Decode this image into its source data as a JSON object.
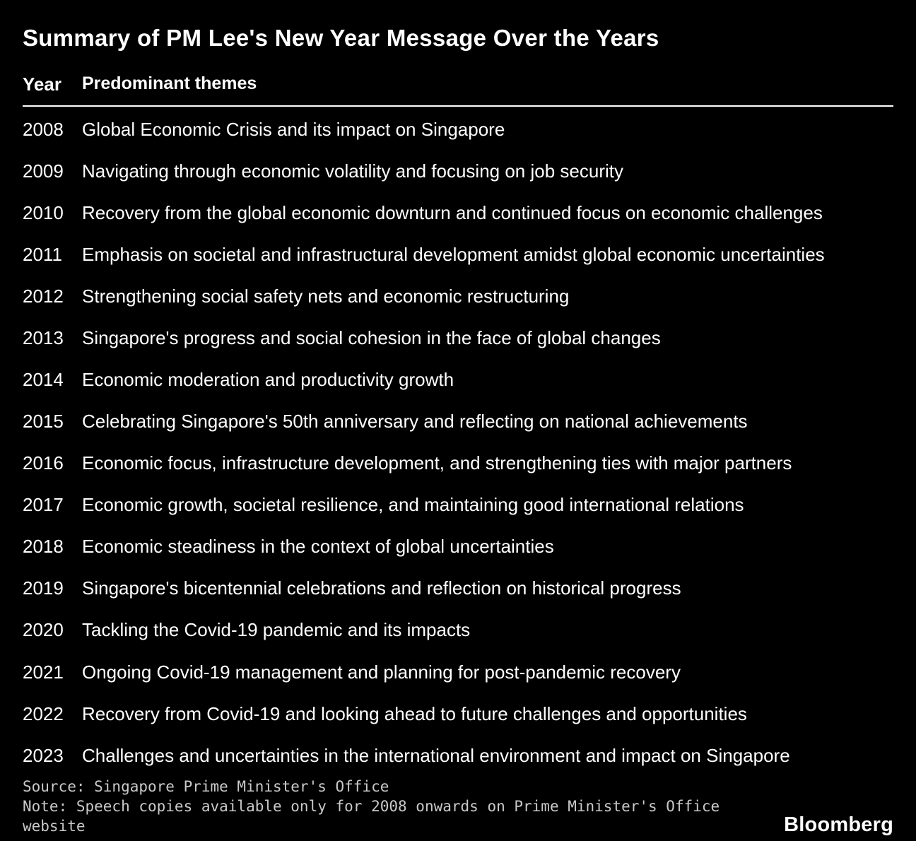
{
  "chart_data": {
    "type": "table",
    "title": "Summary of PM Lee's New Year Message Over the Years",
    "columns": [
      "Year",
      "Predominant themes"
    ],
    "rows": [
      [
        "2008",
        "Global Economic Crisis and its impact on Singapore"
      ],
      [
        "2009",
        "Navigating through economic volatility and focusing on job security"
      ],
      [
        "2010",
        "Recovery from the global economic downturn and continued focus on economic challenges"
      ],
      [
        "2011",
        "Emphasis on societal and infrastructural development amidst global economic uncertainties"
      ],
      [
        "2012",
        "Strengthening social safety nets and economic restructuring"
      ],
      [
        "2013",
        "Singapore's progress and social cohesion in the face of global changes"
      ],
      [
        "2014",
        "Economic moderation and productivity growth"
      ],
      [
        "2015",
        "Celebrating Singapore's 50th anniversary and reflecting on national achievements"
      ],
      [
        "2016",
        "Economic focus, infrastructure development, and strengthening ties with major partners"
      ],
      [
        "2017",
        "Economic growth, societal resilience, and maintaining good international relations"
      ],
      [
        "2018",
        "Economic steadiness in the context of global uncertainties"
      ],
      [
        "2019",
        "Singapore's bicentennial celebrations and reflection on historical progress"
      ],
      [
        "2020",
        "Tackling the Covid-19 pandemic and its impacts"
      ],
      [
        "2021",
        "Ongoing Covid-19 management and planning for post-pandemic recovery"
      ],
      [
        "2022",
        "Recovery from Covid-19 and looking ahead to future challenges and opportunities"
      ],
      [
        "2023",
        "Challenges and uncertainties in the international environment and impact on Singapore"
      ]
    ],
    "source": "Source: Singapore Prime Minister's Office",
    "note": "Note: Speech copies available only for 2008 onwards on Prime Minister's Office website"
  },
  "branding": {
    "logo": "Bloomberg"
  },
  "colors": {
    "background": "#000000",
    "text": "#ffffff",
    "footer_text": "#c9c9c9",
    "divider": "#ffffff"
  }
}
